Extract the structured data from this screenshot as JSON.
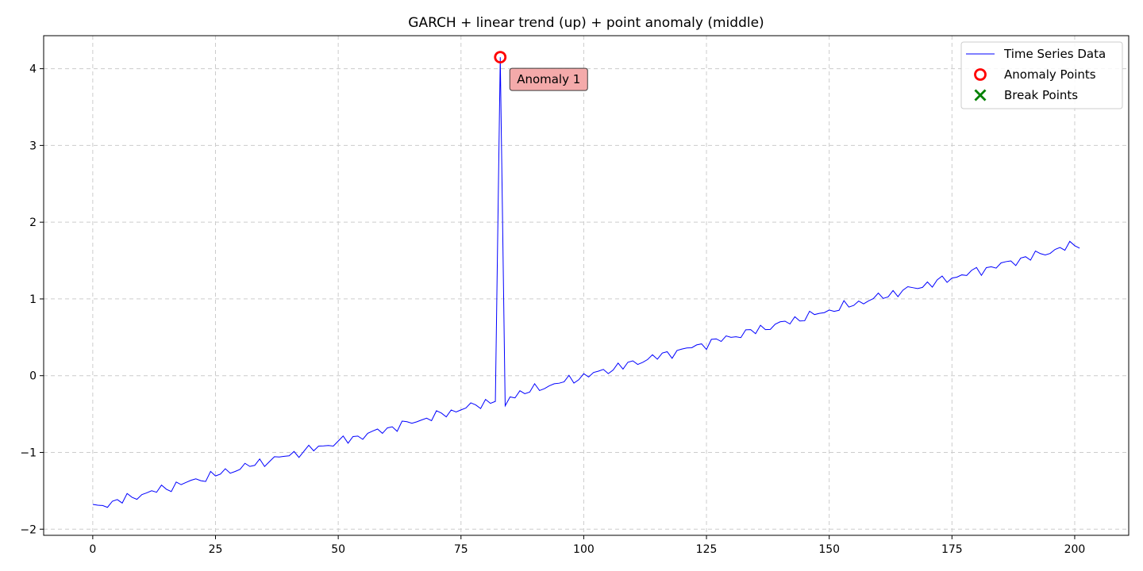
{
  "chart_data": {
    "type": "line",
    "title": "GARCH + linear trend (up) + point anomaly (middle)",
    "xlabel": "",
    "ylabel": "",
    "xlim": [
      -10,
      211
    ],
    "ylim": [
      -2.08,
      4.43
    ],
    "xticks": [
      0,
      25,
      50,
      75,
      100,
      125,
      150,
      175,
      200
    ],
    "yticks": [
      -2,
      -1,
      0,
      1,
      2,
      3,
      4
    ],
    "grid": true,
    "legend_position": "top-right",
    "colors": {
      "line": "#0000ff",
      "anomaly": "#ff0000",
      "break": "#008000",
      "annotation_fill": "#f4a6a6"
    },
    "series": [
      {
        "name": "Time Series Data",
        "trend_start": -1.72,
        "trend_end": 1.72,
        "x_start": 0,
        "x_end": 201
      }
    ],
    "anomalies": [
      {
        "x": 83,
        "y": 4.15,
        "label": "Anomaly 1"
      }
    ],
    "break_points": [],
    "legend": [
      {
        "label": "Time Series Data",
        "marker": "line"
      },
      {
        "label": "Anomaly Points",
        "marker": "circle"
      },
      {
        "label": "Break Points",
        "marker": "x"
      }
    ]
  }
}
